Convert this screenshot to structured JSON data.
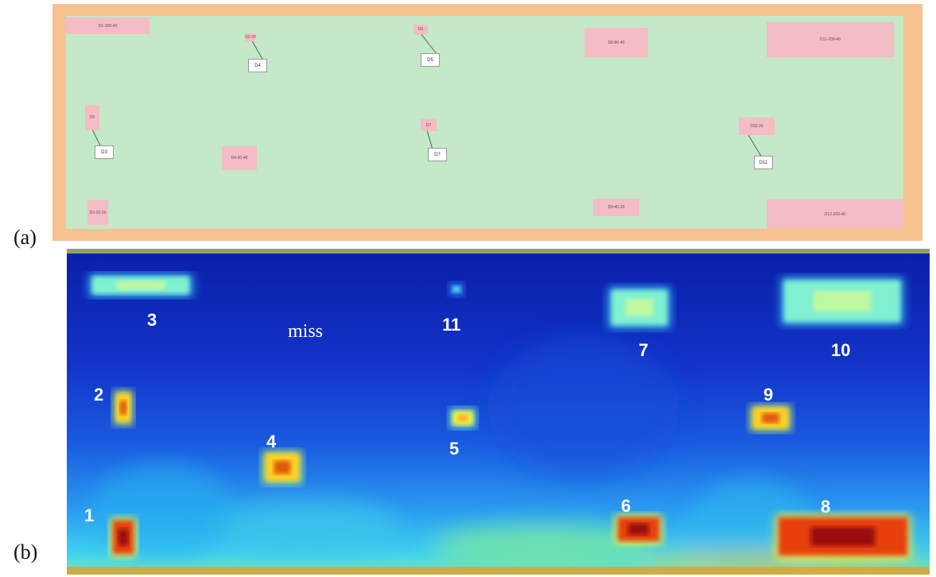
{
  "panels": {
    "a_label": "(a)",
    "b_label": "(b)"
  },
  "panel_a": {
    "defects": [
      {
        "id": "d3",
        "text": "D1-150-40"
      },
      {
        "id": "d2",
        "text": "D2-20"
      },
      {
        "id": "d1",
        "text": "D3-20-20"
      },
      {
        "id": "d4",
        "text": "D4-60-40"
      },
      {
        "id": "dmiss",
        "text": "D5"
      },
      {
        "id": "d5",
        "text": "D6"
      },
      {
        "id": "d11",
        "text": "D7"
      },
      {
        "id": "d7",
        "text": "D8-80-40"
      },
      {
        "id": "d6",
        "text": "D9-40-20"
      },
      {
        "id": "d9",
        "text": "D10-20"
      },
      {
        "id": "d10",
        "text": "D11-200-40"
      },
      {
        "id": "d8",
        "text": "D12-200-40"
      }
    ],
    "tags": [
      "D4",
      "D5",
      "D3",
      "D7",
      "D11"
    ]
  },
  "panel_b": {
    "colormap": "jet",
    "hotspots": [
      {
        "id": "h1",
        "level": 1.0
      },
      {
        "id": "h2",
        "level": 0.75
      },
      {
        "id": "h3",
        "level": 0.5
      },
      {
        "id": "h4",
        "level": 0.7
      },
      {
        "id": "h5",
        "level": 0.65
      },
      {
        "id": "h6",
        "level": 0.9
      },
      {
        "id": "h7",
        "level": 0.45
      },
      {
        "id": "h8",
        "level": 0.95
      },
      {
        "id": "h9",
        "level": 0.8
      },
      {
        "id": "h10",
        "level": 0.45
      },
      {
        "id": "h11",
        "level": 0.3
      }
    ],
    "labels": [
      {
        "id": "1",
        "text": "1"
      },
      {
        "id": "2",
        "text": "2"
      },
      {
        "id": "3",
        "text": "3"
      },
      {
        "id": "4",
        "text": "4"
      },
      {
        "id": "5",
        "text": "5"
      },
      {
        "id": "6",
        "text": "6"
      },
      {
        "id": "7",
        "text": "7"
      },
      {
        "id": "8",
        "text": "8"
      },
      {
        "id": "9",
        "text": "9"
      },
      {
        "id": "10",
        "text": "10"
      },
      {
        "id": "11",
        "text": "11"
      },
      {
        "id": "miss",
        "text": "miss"
      }
    ]
  }
}
